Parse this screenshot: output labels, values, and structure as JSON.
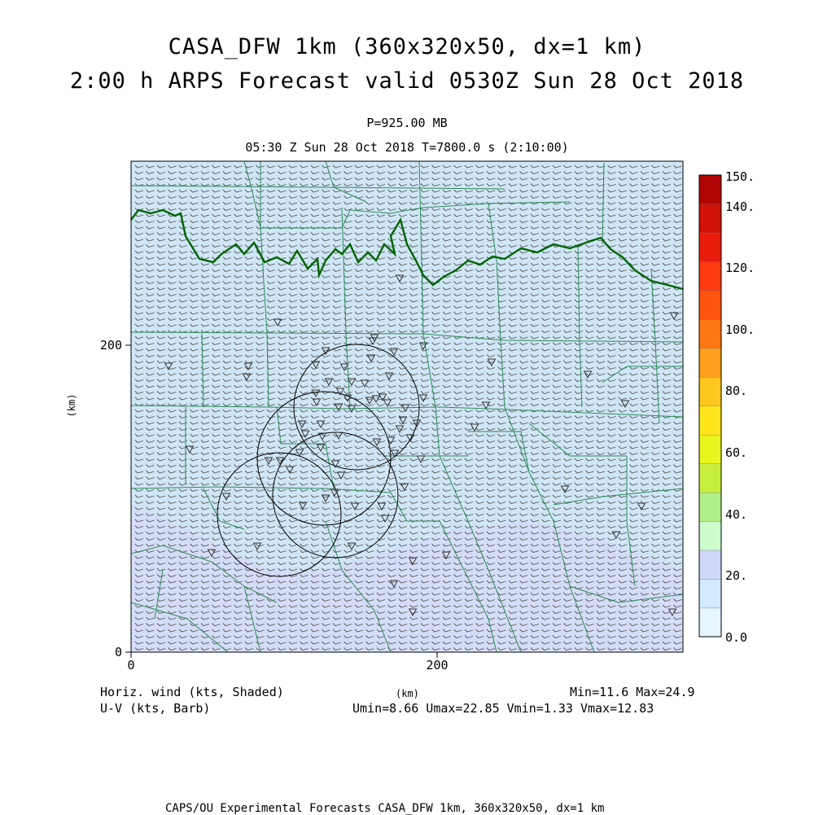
{
  "header": {
    "title_line1": "CASA_DFW 1km (360x320x50, dx=1 km)",
    "title_line2": "2:00 h ARPS Forecast valid 0530Z Sun 28 Oct 2018",
    "pressure_level": "P=925.00 MB",
    "time_line": "05:30 Z Sun 28 Oct 2018   T=7800.0 s (2:10:00)"
  },
  "axes": {
    "x_tick_labels": [
      "0",
      "200"
    ],
    "y_tick_labels": [
      "0",
      "200"
    ],
    "x_unit": "(km)",
    "y_unit": "(km)",
    "x_range_km": [
      0,
      360
    ],
    "y_range_km": [
      0,
      320
    ]
  },
  "colorbar": {
    "labels": [
      "0.0",
      "20.",
      "40.",
      "60.",
      "80.",
      "100.",
      "120.",
      "140.",
      "150."
    ],
    "colors": [
      "#e6f5ff",
      "#d2ebff",
      "#cfd8fa",
      "#cdfccd",
      "#b0f08a",
      "#c6f03c",
      "#e9f51e",
      "#ffe51c",
      "#ffc81e",
      "#ffa01c",
      "#ff7814",
      "#ff5510",
      "#ff3a10",
      "#e81c0c",
      "#d0120a",
      "#b00404"
    ]
  },
  "footer": {
    "field_label": "Horiz. wind (kts, Shaded)",
    "vector_label": "U-V (kts, Barb)",
    "x_unit": "(km)",
    "minmax": "Min=11.6 Max=24.9",
    "uv_minmax": "Umin=8.66 Umax=22.85 Vmin=1.33 Vmax=12.83",
    "credit": "CAPS/OU Experimental Forecasts  CASA_DFW 1km, 360x320x50, dx=1 km"
  },
  "map_colors": {
    "background_field": "#cfe6f6",
    "county_lines": "#2e8b57",
    "state_border": "#006400",
    "radar_circles": "#000000"
  }
}
